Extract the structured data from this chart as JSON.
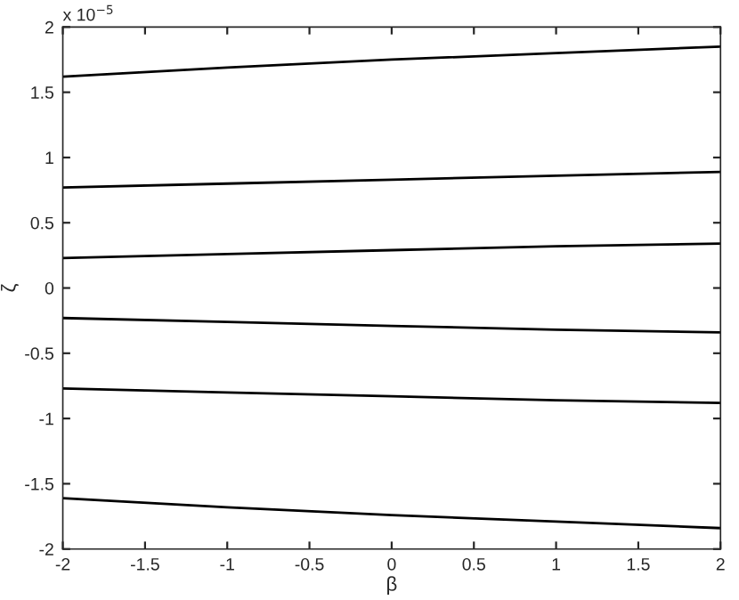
{
  "chart_data": {
    "type": "line",
    "xlabel": "β",
    "ylabel": "ζ",
    "annotations": [
      "x 10$^{−5}$"
    ],
    "x": [
      -2,
      -1,
      0,
      1,
      2
    ],
    "series": [
      {
        "color": "#000000",
        "values": [
          1.62,
          1.69,
          1.75,
          1.8,
          1.85
        ]
      },
      {
        "color": "#000000",
        "values": [
          0.77,
          0.8,
          0.83,
          0.86,
          0.89
        ]
      },
      {
        "color": "#000000",
        "values": [
          0.23,
          0.26,
          0.29,
          0.32,
          0.34
        ]
      },
      {
        "color": "#000000",
        "values": [
          -0.23,
          -0.26,
          -0.29,
          -0.32,
          -0.34
        ]
      },
      {
        "color": "#000000",
        "values": [
          -0.77,
          -0.8,
          -0.83,
          -0.86,
          -0.88
        ]
      },
      {
        "color": "#000000",
        "values": [
          -1.61,
          -1.68,
          -1.74,
          -1.79,
          -1.84
        ]
      }
    ],
    "xlim": [
      -2,
      2
    ],
    "ylim": [
      -2,
      2
    ],
    "xticks": [
      -2,
      -1.5,
      -1,
      -0.5,
      0,
      0.5,
      1,
      1.5,
      2
    ],
    "yticks": [
      -2,
      -1.5,
      -1,
      -0.5,
      0,
      0.5,
      1,
      1.5,
      2
    ],
    "grid": false,
    "legend": false
  }
}
